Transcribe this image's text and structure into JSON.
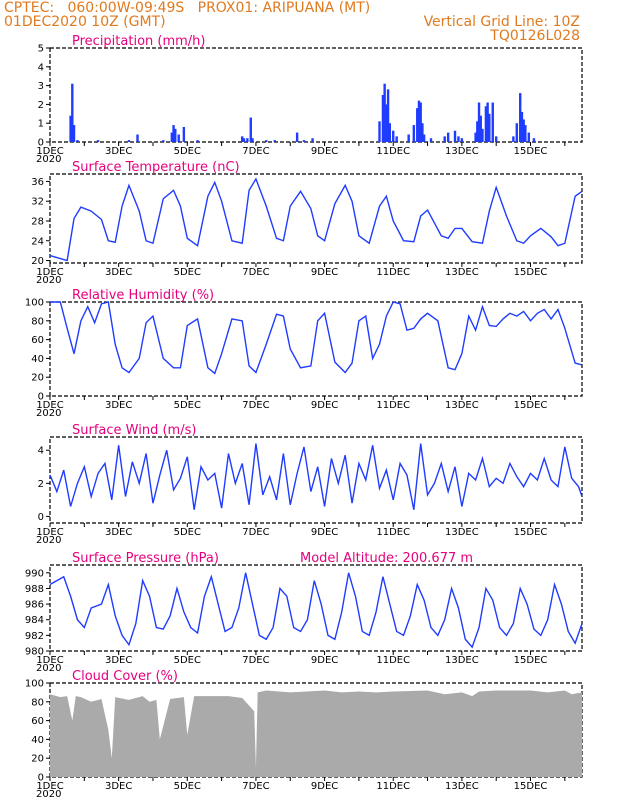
{
  "header": {
    "line1": "CPTEC:   060:00W-09:49S   PROX01: ARIPUANA (MT)",
    "line2_left": "01DEC2020 10Z (GMT)",
    "line2_right": "Vertical Grid Line: 10Z",
    "line3_right": "TQ0126L028"
  },
  "x_labels": [
    "1DEC",
    "3DEC",
    "5DEC",
    "7DEC",
    "9DEC",
    "11DEC",
    "13DEC",
    "15DEC"
  ],
  "x_sub": "2020",
  "chart_data": [
    {
      "type": "bar",
      "title": "Precipitation (mm/h)",
      "yticks": [
        "0",
        "1",
        "2",
        "3",
        "4",
        "5"
      ],
      "ylim": [
        0,
        5
      ],
      "color": "#1f3cff",
      "x_units": "days since 01DEC 10Z",
      "values": [
        [
          0.6,
          1.4
        ],
        [
          0.65,
          3.1
        ],
        [
          0.7,
          0.9
        ],
        [
          0.8,
          0.1
        ],
        [
          1.4,
          0.1
        ],
        [
          2.3,
          0.1
        ],
        [
          2.55,
          0.4
        ],
        [
          3.3,
          0.1
        ],
        [
          3.55,
          0.5
        ],
        [
          3.6,
          0.9
        ],
        [
          3.65,
          0.7
        ],
        [
          3.75,
          0.4
        ],
        [
          3.9,
          0.8
        ],
        [
          4.3,
          0.1
        ],
        [
          5.6,
          0.3
        ],
        [
          5.65,
          0.2
        ],
        [
          5.75,
          0.2
        ],
        [
          5.85,
          1.3
        ],
        [
          5.9,
          0.2
        ],
        [
          6.3,
          0.1
        ],
        [
          6.55,
          0.1
        ],
        [
          7.2,
          0.5
        ],
        [
          7.4,
          0.1
        ],
        [
          7.65,
          0.2
        ],
        [
          9.6,
          1.1
        ],
        [
          9.7,
          2.5
        ],
        [
          9.75,
          3.1
        ],
        [
          9.8,
          2.0
        ],
        [
          9.85,
          2.8
        ],
        [
          9.9,
          1.0
        ],
        [
          10.0,
          0.6
        ],
        [
          10.1,
          0.3
        ],
        [
          10.45,
          0.4
        ],
        [
          10.6,
          0.9
        ],
        [
          10.7,
          1.8
        ],
        [
          10.75,
          2.2
        ],
        [
          10.8,
          2.1
        ],
        [
          10.85,
          1.0
        ],
        [
          10.9,
          0.4
        ],
        [
          11.1,
          0.2
        ],
        [
          11.5,
          0.3
        ],
        [
          11.6,
          0.5
        ],
        [
          11.8,
          0.6
        ],
        [
          11.9,
          0.3
        ],
        [
          12.0,
          0.2
        ],
        [
          12.4,
          0.5
        ],
        [
          12.45,
          1.1
        ],
        [
          12.5,
          2.1
        ],
        [
          12.55,
          1.4
        ],
        [
          12.6,
          0.7
        ],
        [
          12.7,
          1.9
        ],
        [
          12.75,
          2.1
        ],
        [
          12.8,
          1.5
        ],
        [
          12.9,
          2.1
        ],
        [
          13.0,
          0.3
        ],
        [
          13.5,
          0.3
        ],
        [
          13.6,
          1.0
        ],
        [
          13.7,
          2.6
        ],
        [
          13.75,
          1.6
        ],
        [
          13.8,
          1.2
        ],
        [
          13.85,
          0.9
        ],
        [
          13.95,
          0.5
        ],
        [
          14.1,
          0.2
        ]
      ]
    },
    {
      "type": "line",
      "title": "Surface Temperature (nC)",
      "yticks": [
        "20",
        "24",
        "28",
        "32",
        "36"
      ],
      "ylim": [
        19.5,
        37.5
      ],
      "color": "#1f3cff",
      "x": [
        0,
        0.4,
        0.5,
        0.7,
        0.9,
        1.2,
        1.5,
        1.7,
        1.9,
        2.1,
        2.3,
        2.6,
        2.8,
        3.0,
        3.3,
        3.6,
        3.8,
        4.0,
        4.3,
        4.6,
        4.8,
        5.0,
        5.3,
        5.6,
        5.8,
        6.0,
        6.3,
        6.6,
        6.8,
        7.0,
        7.3,
        7.6,
        7.8,
        8.0,
        8.3,
        8.6,
        8.8,
        9.0,
        9.3,
        9.6,
        9.8,
        10.0,
        10.3,
        10.6,
        10.8,
        11.0,
        11.4,
        11.6,
        11.8,
        12.0,
        12.3,
        12.6,
        12.8,
        13.0,
        13.3,
        13.6,
        13.8,
        14.0,
        14.3,
        14.6,
        14.8,
        15.0,
        15.3,
        15.5
      ],
      "values": [
        21,
        20.2,
        20,
        28.5,
        30.8,
        30,
        28.3,
        24,
        23.7,
        31,
        35.2,
        30,
        24,
        23.5,
        32.5,
        34.2,
        31,
        24.5,
        23,
        33,
        35.8,
        32,
        24,
        23.5,
        34.2,
        36.5,
        31,
        24.5,
        24,
        31,
        34,
        30.5,
        25,
        24,
        31.5,
        35.2,
        32,
        25,
        23.5,
        31,
        33,
        28,
        24,
        23.8,
        29,
        30.2,
        25,
        24.5,
        26.5,
        26.5,
        23.8,
        23.5,
        30,
        34.8,
        29,
        24,
        23.5,
        25,
        26.5,
        24.8,
        23,
        23.5,
        33,
        34
      ]
    },
    {
      "type": "line",
      "title": "Relative Humidity (%)",
      "yticks": [
        "0",
        "20",
        "40",
        "60",
        "80",
        "100"
      ],
      "ylim": [
        0,
        100
      ],
      "color": "#1f3cff",
      "x": [
        0,
        0.3,
        0.5,
        0.7,
        0.9,
        1.1,
        1.3,
        1.5,
        1.7,
        1.9,
        2.1,
        2.3,
        2.6,
        2.8,
        3.0,
        3.3,
        3.6,
        3.8,
        4.0,
        4.3,
        4.6,
        4.8,
        5.0,
        5.3,
        5.6,
        5.8,
        6.0,
        6.3,
        6.6,
        6.8,
        7.0,
        7.3,
        7.6,
        7.8,
        8.0,
        8.3,
        8.6,
        8.8,
        9.0,
        9.2,
        9.4,
        9.6,
        9.8,
        10.0,
        10.2,
        10.4,
        10.6,
        10.8,
        11.0,
        11.3,
        11.6,
        11.8,
        12.0,
        12.2,
        12.4,
        12.6,
        12.8,
        13.0,
        13.2,
        13.4,
        13.6,
        13.8,
        14.0,
        14.2,
        14.4,
        14.6,
        14.8,
        15.0,
        15.3,
        15.5
      ],
      "values": [
        100,
        100,
        72,
        45,
        80,
        95,
        78,
        98,
        100,
        55,
        30,
        25,
        40,
        78,
        85,
        40,
        30,
        30,
        75,
        82,
        30,
        24,
        45,
        82,
        80,
        32,
        25,
        55,
        87,
        85,
        50,
        30,
        32,
        80,
        88,
        36,
        25,
        35,
        80,
        85,
        40,
        55,
        85,
        100,
        98,
        70,
        72,
        82,
        88,
        80,
        30,
        28,
        45,
        85,
        70,
        95,
        75,
        74,
        82,
        88,
        85,
        90,
        80,
        88,
        92,
        82,
        92,
        72,
        35,
        33
      ]
    },
    {
      "type": "line",
      "title": "Surface Wind (m/s)",
      "yticks": [
        "0",
        "2",
        "4"
      ],
      "ylim": [
        -0.4,
        4.8
      ],
      "color": "#1f3cff",
      "x": [
        0,
        0.2,
        0.4,
        0.6,
        0.8,
        1.0,
        1.2,
        1.4,
        1.6,
        1.8,
        2.0,
        2.2,
        2.4,
        2.6,
        2.8,
        3.0,
        3.2,
        3.4,
        3.6,
        3.8,
        4.0,
        4.2,
        4.4,
        4.6,
        4.8,
        5.0,
        5.2,
        5.4,
        5.6,
        5.8,
        6.0,
        6.2,
        6.4,
        6.6,
        6.8,
        7.0,
        7.2,
        7.4,
        7.6,
        7.8,
        8.0,
        8.2,
        8.4,
        8.6,
        8.8,
        9.0,
        9.2,
        9.4,
        9.6,
        9.8,
        10.0,
        10.2,
        10.4,
        10.6,
        10.8,
        11.0,
        11.2,
        11.4,
        11.6,
        11.8,
        12.0,
        12.2,
        12.4,
        12.6,
        12.8,
        13.0,
        13.2,
        13.4,
        13.6,
        13.8,
        14.0,
        14.2,
        14.4,
        14.6,
        14.8,
        15.0,
        15.2,
        15.4,
        15.5
      ],
      "values": [
        2.5,
        1.5,
        2.8,
        0.6,
        2.0,
        3.0,
        1.2,
        2.6,
        3.2,
        1.0,
        4.3,
        1.2,
        3.3,
        2.0,
        3.8,
        0.8,
        2.5,
        4.0,
        1.6,
        2.3,
        3.6,
        0.4,
        3.0,
        2.2,
        2.6,
        0.5,
        3.8,
        2.0,
        3.2,
        0.7,
        4.4,
        1.3,
        2.4,
        1.0,
        3.8,
        0.7,
        2.6,
        4.2,
        1.5,
        3.0,
        0.6,
        3.5,
        2.0,
        3.7,
        0.8,
        3.2,
        2.2,
        4.3,
        1.7,
        2.8,
        1.0,
        3.2,
        2.5,
        0.4,
        4.4,
        1.3,
        2.0,
        3.2,
        1.5,
        3.0,
        0.6,
        2.6,
        2.2,
        3.5,
        1.8,
        2.3,
        2.0,
        3.2,
        2.4,
        1.8,
        2.6,
        2.2,
        3.5,
        2.2,
        1.8,
        4.2,
        2.3,
        1.8,
        1.2
      ]
    },
    {
      "type": "line",
      "title": "Surface Pressure (hPa)",
      "subtitle": "Model Altitude: 200.677 m",
      "yticks": [
        "980",
        "982",
        "984",
        "986",
        "988",
        "990"
      ],
      "ylim": [
        980,
        991
      ],
      "color": "#1f3cff",
      "x": [
        0,
        0.2,
        0.4,
        0.6,
        0.8,
        1.0,
        1.2,
        1.5,
        1.7,
        1.9,
        2.1,
        2.3,
        2.5,
        2.7,
        2.9,
        3.1,
        3.3,
        3.5,
        3.7,
        3.9,
        4.1,
        4.3,
        4.5,
        4.7,
        4.9,
        5.1,
        5.3,
        5.5,
        5.7,
        5.9,
        6.1,
        6.3,
        6.5,
        6.7,
        6.9,
        7.1,
        7.3,
        7.5,
        7.7,
        7.9,
        8.1,
        8.3,
        8.5,
        8.7,
        8.9,
        9.1,
        9.3,
        9.5,
        9.7,
        9.9,
        10.1,
        10.3,
        10.5,
        10.7,
        10.9,
        11.1,
        11.3,
        11.5,
        11.7,
        11.9,
        12.1,
        12.3,
        12.5,
        12.7,
        12.9,
        13.1,
        13.3,
        13.5,
        13.7,
        13.9,
        14.1,
        14.3,
        14.5,
        14.7,
        14.9,
        15.1,
        15.3,
        15.5
      ],
      "values": [
        988.5,
        989,
        989.5,
        987,
        984,
        983,
        985.5,
        986,
        988.5,
        984.5,
        982,
        980.8,
        983.5,
        989,
        987,
        983,
        982.8,
        984.5,
        988,
        985,
        983,
        982.3,
        987,
        989.5,
        986,
        982.5,
        983,
        985.5,
        990,
        986,
        982,
        981.5,
        983,
        988,
        987,
        983,
        982.5,
        984,
        989,
        986,
        982,
        981.5,
        985,
        990,
        987,
        982.5,
        982,
        985,
        989.5,
        986,
        982.5,
        982,
        984.5,
        988.5,
        986.5,
        983,
        982,
        984,
        988,
        985.5,
        981.5,
        980.5,
        983,
        988,
        986.5,
        983,
        982,
        983.5,
        988,
        986,
        982.8,
        982,
        984,
        988.5,
        986,
        982.5,
        981,
        983.5
      ]
    },
    {
      "type": "area",
      "title": "Cloud Cover (%)",
      "yticks": [
        "0",
        "20",
        "40",
        "60",
        "80",
        "100"
      ],
      "ylim": [
        0,
        100
      ],
      "color": "#aaaaaa",
      "x": [
        0,
        0.3,
        0.5,
        0.65,
        0.75,
        0.9,
        1.2,
        1.5,
        1.7,
        1.8,
        1.9,
        2.3,
        2.7,
        2.9,
        3.1,
        3.2,
        3.5,
        3.9,
        4.0,
        4.2,
        4.6,
        5.2,
        5.6,
        5.95,
        6.0,
        6.05,
        6.3,
        7.0,
        8.0,
        8.5,
        9.0,
        9.5,
        10.0,
        11.0,
        11.5,
        12.0,
        12.3,
        12.5,
        13.0,
        14.0,
        14.5,
        15.0,
        15.2,
        15.5
      ],
      "values": [
        88,
        85,
        86,
        60,
        86,
        85,
        80,
        83,
        50,
        20,
        85,
        82,
        86,
        80,
        82,
        40,
        83,
        85,
        45,
        86,
        86,
        86,
        84,
        70,
        10,
        90,
        92,
        90,
        92,
        90,
        91,
        90,
        91,
        92,
        88,
        90,
        86,
        91,
        92,
        92,
        90,
        92,
        88,
        90
      ]
    }
  ]
}
